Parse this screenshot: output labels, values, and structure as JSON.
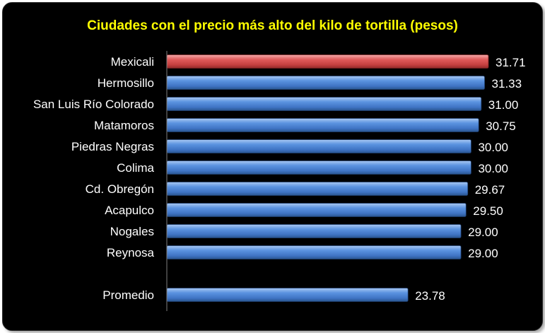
{
  "chart_data": {
    "type": "bar",
    "orientation": "horizontal",
    "title": "Ciudades con el precio más alto del kilo de tortilla (pesos)",
    "categories": [
      "Mexicali",
      "Hermosillo",
      "San Luis Río Colorado",
      "Matamoros",
      "Piedras Negras",
      "Colima",
      "Cd. Obregón",
      "Acapulco",
      "Nogales",
      "Reynosa",
      "",
      "Promedio"
    ],
    "values": [
      31.71,
      31.33,
      31.0,
      30.75,
      30.0,
      30.0,
      29.67,
      29.5,
      29.0,
      29.0,
      null,
      23.78
    ],
    "value_labels": [
      "31.71",
      "31.33",
      "31.00",
      "30.75",
      "30.00",
      "30.00",
      "29.67",
      "29.50",
      "29.00",
      "29.00",
      "",
      "23.78"
    ],
    "highlight_index": 0,
    "xlim": [
      0,
      32
    ],
    "xlabel": "",
    "ylabel": "",
    "grid": false,
    "legend": "none",
    "colors": {
      "background": "#000000",
      "title": "#ffff00",
      "labels": "#ffffff",
      "bar": "#4a83d2",
      "bar_highlight": "#d94a4a",
      "axis": "#7f7f7f"
    }
  }
}
